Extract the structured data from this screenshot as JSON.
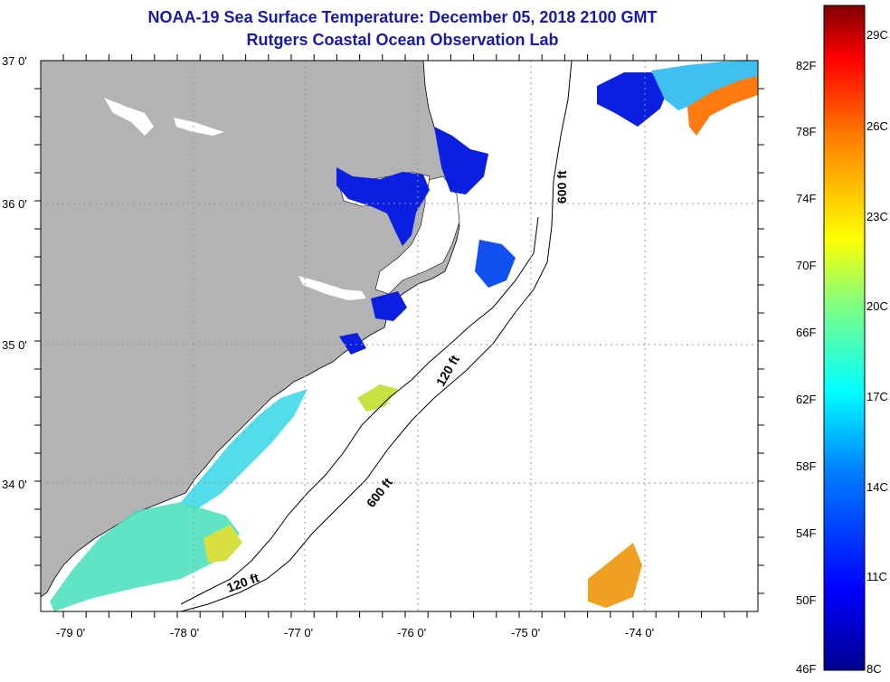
{
  "title": "NOAA-19 Sea Surface Temperature:  December 05, 2018 2100 GMT",
  "subtitle": "Rutgers Coastal Ocean Observation Lab",
  "lat_labels": [
    "37 0'",
    "36 0'",
    "35 0'",
    "34 0'"
  ],
  "lon_labels": [
    "-79 0'",
    "-78 0'",
    "-77 0'",
    "-76 0'",
    "-75 0'",
    "-74 0'"
  ],
  "contour_labels": {
    "c600_north": "600 ft",
    "c120_mid": "120 ft",
    "c600_south": "600 ft",
    "c120_south": "120 ft"
  },
  "colorbar": {
    "fahrenheit": [
      "82F",
      "78F",
      "74F",
      "70F",
      "66F",
      "62F",
      "58F",
      "54F",
      "50F",
      "46F"
    ],
    "celsius": [
      "29C",
      "26C",
      "23C",
      "20C",
      "17C",
      "14C",
      "11C",
      "8C"
    ],
    "min_c": 8,
    "max_c": 29.5
  },
  "colors": {
    "title": "#1a1aa8",
    "land": "#b3b3b3",
    "grid": "#9a9a9a"
  },
  "map_extent": {
    "lon_min": -79.3,
    "lon_max": -72.8,
    "lat_min": 33.15,
    "lat_max": 37.0
  }
}
